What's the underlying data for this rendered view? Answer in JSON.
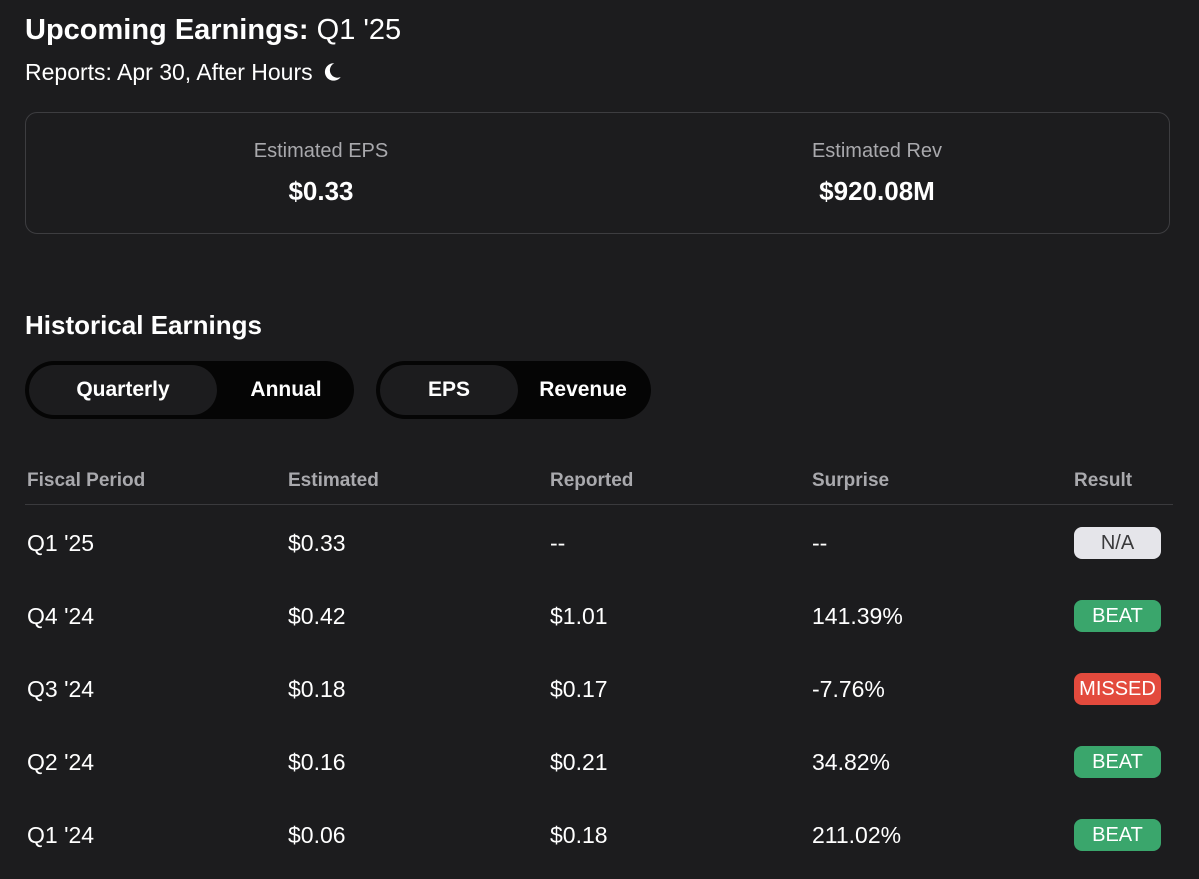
{
  "upcoming": {
    "title_prefix": "Upcoming Earnings:",
    "period": "Q1 '25",
    "report_text": "Reports: Apr 30, After Hours",
    "report_icon": "moon-icon",
    "estimated_eps_label": "Estimated EPS",
    "estimated_eps_value": "$0.33",
    "estimated_rev_label": "Estimated Rev",
    "estimated_rev_value": "$920.08M"
  },
  "historical": {
    "title": "Historical Earnings",
    "period_toggle": {
      "options": [
        "Quarterly",
        "Annual"
      ],
      "selected": "Quarterly"
    },
    "metric_toggle": {
      "options": [
        "EPS",
        "Revenue"
      ],
      "selected": "EPS"
    },
    "columns": [
      "Fiscal Period",
      "Estimated",
      "Reported",
      "Surprise",
      "Result"
    ],
    "rows": [
      {
        "period": "Q1 '25",
        "estimated": "$0.33",
        "reported": "--",
        "surprise": "--",
        "result": "N/A",
        "status": "na"
      },
      {
        "period": "Q4 '24",
        "estimated": "$0.42",
        "reported": "$1.01",
        "surprise": "141.39%",
        "result": "BEAT",
        "status": "beat"
      },
      {
        "period": "Q3 '24",
        "estimated": "$0.18",
        "reported": "$0.17",
        "surprise": "-7.76%",
        "result": "MISSED",
        "status": "missed"
      },
      {
        "period": "Q2 '24",
        "estimated": "$0.16",
        "reported": "$0.21",
        "surprise": "34.82%",
        "result": "BEAT",
        "status": "beat"
      },
      {
        "period": "Q1 '24",
        "estimated": "$0.06",
        "reported": "$0.18",
        "surprise": "211.02%",
        "result": "BEAT",
        "status": "beat"
      }
    ]
  },
  "colors": {
    "background": "#1c1c1e",
    "toggle_track": "#050505",
    "muted_text": "#a9a9ad",
    "beat_badge": "#3aa66c",
    "missed_badge": "#e34a3d",
    "na_badge": "#e5e5ea",
    "na_text": "#3a3a3c"
  }
}
